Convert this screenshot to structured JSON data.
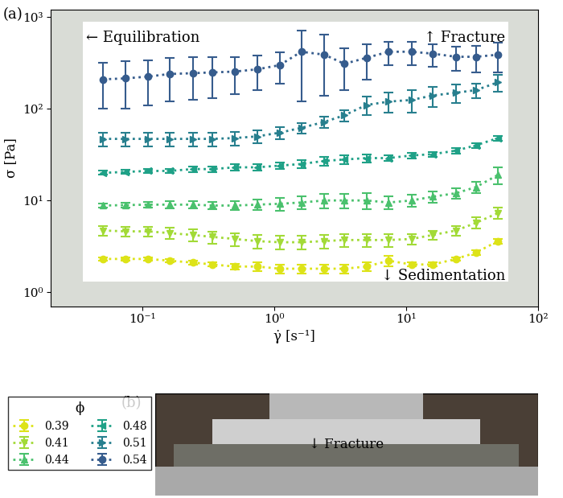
{
  "chart_data": {
    "type": "errorbar_scatter",
    "panel_label": "(a)",
    "x_label": "γ̇ [s⁻¹]",
    "y_label": "σ [Pa]",
    "log": true,
    "xlim": [
      0.02,
      100
    ],
    "ylim": [
      0.7,
      1200
    ],
    "xticks": [
      {
        "value": 0.1,
        "label": "10⁻¹"
      },
      {
        "value": 1,
        "label": "10⁰"
      },
      {
        "value": 10,
        "label": "10¹"
      },
      {
        "value": 100,
        "label": "10²"
      }
    ],
    "yticks": [
      {
        "value": 1,
        "label": "10⁰"
      },
      {
        "value": 10,
        "label": "10¹"
      },
      {
        "value": 100,
        "label": "10²"
      },
      {
        "value": 1000,
        "label": "10³"
      }
    ],
    "measured_region": {
      "x": [
        0.035,
        60
      ],
      "y": [
        1.3,
        900
      ]
    },
    "annotations": [
      {
        "text": "← Equilibration",
        "x": 0.037,
        "y": 600
      },
      {
        "text": "↑ Fracture",
        "x": 57,
        "y": 600
      },
      {
        "text": "↓ Sedimentation",
        "x": 57,
        "y": 1.5
      }
    ],
    "legend": "lower left",
    "legend_title": "ϕ",
    "x": [
      0.05,
      0.074,
      0.11,
      0.16,
      0.24,
      0.34,
      0.5,
      0.74,
      1.1,
      1.6,
      2.4,
      3.4,
      5,
      7.4,
      11,
      16,
      24,
      34,
      50
    ],
    "series": [
      {
        "name": "0.39",
        "color": "#dde318",
        "marker": "o",
        "line_style": "dotted",
        "values": [
          2.3,
          2.3,
          2.3,
          2.2,
          2.1,
          2.0,
          1.9,
          1.9,
          1.8,
          1.8,
          1.8,
          1.8,
          1.9,
          2.2,
          2.0,
          2.0,
          2.3,
          2.7,
          3.6
        ],
        "errors": [
          0.1,
          0.1,
          0.1,
          0.1,
          0.1,
          0.1,
          0.15,
          0.2,
          0.2,
          0.2,
          0.2,
          0.2,
          0.2,
          0.3,
          0.1,
          0.1,
          0.1,
          0.15,
          0.2
        ]
      },
      {
        "name": "0.41",
        "color": "#a2da37",
        "marker": "v",
        "line_style": "dotted",
        "values": [
          4.7,
          4.6,
          4.6,
          4.4,
          4.2,
          4.0,
          3.8,
          3.6,
          3.5,
          3.5,
          3.6,
          3.7,
          3.7,
          3.7,
          3.8,
          4.2,
          4.7,
          5.7,
          7.3
        ],
        "errors": [
          0.6,
          0.6,
          0.6,
          0.6,
          0.6,
          0.6,
          0.6,
          0.6,
          0.6,
          0.6,
          0.6,
          0.6,
          0.6,
          0.6,
          0.5,
          0.5,
          0.6,
          0.8,
          1.0
        ]
      },
      {
        "name": "0.44",
        "color": "#4ac16d",
        "marker": "^",
        "line_style": "dotted",
        "values": [
          8.8,
          8.9,
          9.0,
          9.0,
          9.0,
          8.8,
          8.8,
          9.0,
          9.2,
          9.5,
          10.0,
          10.0,
          10.0,
          9.5,
          10.0,
          11.0,
          12.0,
          14.0,
          19.0
        ],
        "errors": [
          0.5,
          0.5,
          0.6,
          0.8,
          0.8,
          0.8,
          1.0,
          1.2,
          1.5,
          1.5,
          1.8,
          1.8,
          2.0,
          1.5,
          1.5,
          1.5,
          1.5,
          2.0,
          4.0
        ]
      },
      {
        "name": "0.48",
        "color": "#1fa187",
        "marker": "<",
        "line_style": "dotted",
        "values": [
          20.0,
          20.5,
          21.0,
          21.0,
          22.0,
          22.0,
          23.0,
          23.0,
          24.0,
          25.0,
          27.0,
          28.0,
          29.0,
          29.0,
          31.0,
          32.0,
          35.0,
          40.0,
          48.0
        ],
        "errors": [
          1.0,
          1.0,
          1.0,
          1.0,
          1.5,
          1.5,
          2.0,
          2.0,
          2.0,
          2.5,
          3.0,
          3.0,
          3.0,
          2.0,
          2.0,
          2.0,
          2.5,
          2.5,
          3.0
        ]
      },
      {
        "name": "0.51",
        "color": "#277f8e",
        "marker": ">",
        "line_style": "dotted",
        "values": [
          47.0,
          47.0,
          47.0,
          47.0,
          47.0,
          47.0,
          48.0,
          50.0,
          55.0,
          62.0,
          72.0,
          85.0,
          110.0,
          120.0,
          125.0,
          140.0,
          150.0,
          160.0,
          195.0
        ],
        "errors": [
          8.0,
          8.0,
          8.0,
          8.0,
          8.0,
          8.0,
          8.0,
          8.0,
          8.0,
          8.0,
          10.0,
          12.0,
          25.0,
          30.0,
          35.0,
          35.0,
          35.0,
          30.0,
          40.0
        ]
      },
      {
        "name": "0.54",
        "color": "#365c8d",
        "marker": "o",
        "line_style": "dotted",
        "values": [
          210.0,
          215.0,
          225.0,
          240.0,
          245.0,
          250.0,
          255.0,
          270.0,
          300.0,
          420.0,
          390.0,
          310.0,
          360.0,
          420.0,
          420.0,
          400.0,
          370.0,
          370.0,
          390.0
        ],
        "errors": [
          110.0,
          115.0,
          115.0,
          120.0,
          120.0,
          120.0,
          110.0,
          110.0,
          110.0,
          300.0,
          250.0,
          150.0,
          150.0,
          120.0,
          120.0,
          110.0,
          110.0,
          120.0,
          140.0
        ]
      }
    ],
    "photo": {
      "panel_label": "(b)",
      "annotation": "↓ Fracture"
    }
  }
}
